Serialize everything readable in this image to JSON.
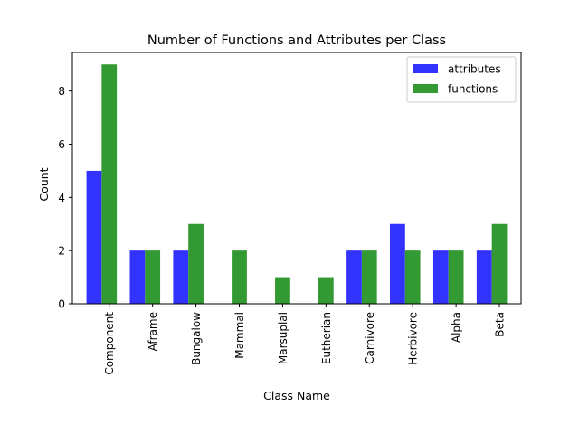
{
  "chart_data": {
    "type": "bar",
    "title": "Number of Functions and Attributes per Class",
    "xlabel": "Class Name",
    "ylabel": "Count",
    "categories": [
      "Component",
      "Aframe",
      "Bungalow",
      "Mammal",
      "Marsupial",
      "Eutherian",
      "Carnivore",
      "Herbivore",
      "Alpha",
      "Beta"
    ],
    "series": [
      {
        "name": "attributes",
        "color": "#3333ff",
        "values": [
          5,
          2,
          2,
          0,
          0,
          0,
          2,
          3,
          2,
          2
        ]
      },
      {
        "name": "functions",
        "color": "#339933",
        "values": [
          9,
          2,
          3,
          2,
          1,
          1,
          2,
          2,
          2,
          3
        ]
      }
    ],
    "ylim": [
      0,
      9.45
    ],
    "yticks": [
      0,
      2,
      4,
      6,
      8
    ],
    "grid": false,
    "legend": "top-right"
  }
}
